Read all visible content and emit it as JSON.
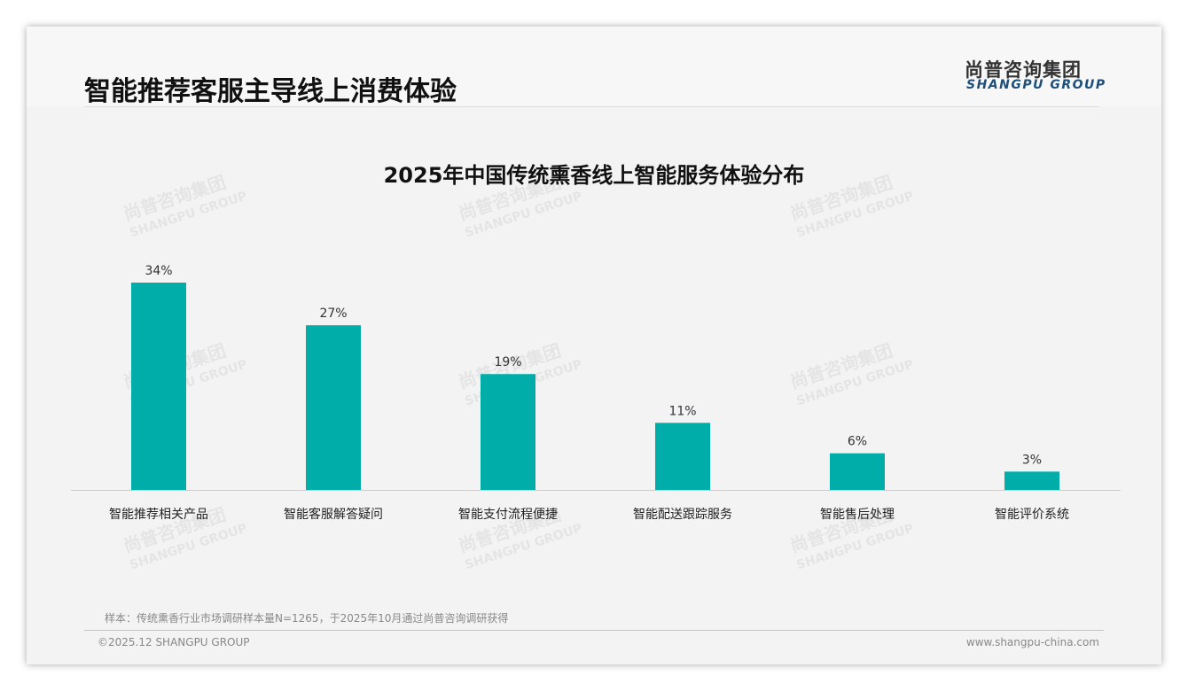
{
  "header": {
    "title": "智能推荐客服主导线上消费体验",
    "logo_cn": "尚普咨询集团",
    "logo_en": "SHANGPU GROUP"
  },
  "footer": {
    "note": "样本：传统熏香行业市场调研样本量N=1265，于2025年10月通过尚普咨询调研获得",
    "copyright": "©2025.12 SHANGPU GROUP",
    "website": "www.shangpu-china.com"
  },
  "colors": {
    "bar": "#00ADA8"
  },
  "chart_data": {
    "type": "bar",
    "title": "2025年中国传统熏香线上智能服务体验分布",
    "categories": [
      "智能推荐相关产品",
      "智能客服解答疑问",
      "智能支付流程便捷",
      "智能配送跟踪服务",
      "智能售后处理",
      "智能评价系统"
    ],
    "values": [
      34,
      27,
      19,
      11,
      6,
      3
    ],
    "labels": [
      "34%",
      "27%",
      "19%",
      "11%",
      "6%",
      "3%"
    ],
    "unit": "%",
    "ylim": [
      0,
      40
    ],
    "grid": false,
    "xlabel": "",
    "ylabel": ""
  }
}
